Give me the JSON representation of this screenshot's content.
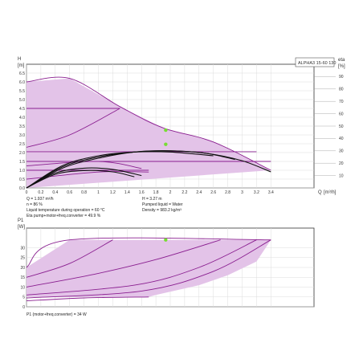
{
  "chart_data": [
    {
      "type": "line",
      "title": "ALPHA3 15-60 130",
      "ylabel": "H",
      "ylabel_unit": "[m]",
      "y2label": "eta",
      "y2label_unit": "[%]",
      "xlabel": "Q",
      "xlabel_unit": "[m³/h]",
      "xlim": [
        0,
        4.0
      ],
      "ylim": [
        0,
        7.0
      ],
      "y2lim": [
        0,
        100
      ],
      "grid": true,
      "x_ticks": [
        0,
        0.2,
        0.4,
        0.6,
        0.8,
        1.0,
        1.2,
        1.4,
        1.6,
        1.8,
        2.0,
        2.2,
        2.4,
        2.6,
        2.8,
        3.0,
        3.2,
        3.4
      ],
      "x_tick_labels": [
        "0",
        "0.2",
        "0.4",
        "0.6",
        "0.8",
        "1",
        "1.2",
        "1.4",
        "1.6",
        "1.8",
        "2",
        "2.2",
        "2.4",
        "2.6",
        "2.8",
        "3",
        "3.2",
        "3.4"
      ],
      "y_ticks": [
        0,
        0.5,
        1.0,
        1.5,
        2.0,
        2.5,
        3.0,
        3.5,
        4.0,
        4.5,
        5.0,
        5.5,
        6.0,
        6.5
      ],
      "y_tick_labels": [
        "0.0",
        "0.5",
        "1.0",
        "1.5",
        "2.0",
        "2.5",
        "3.0",
        "3.5",
        "4.0",
        "4.5",
        "5.0",
        "5.5",
        "6.0",
        "6.5"
      ],
      "y2_ticks": [
        10,
        20,
        30,
        40,
        50,
        60,
        70,
        80,
        90
      ],
      "y2_tick_labels": [
        "10",
        "20",
        "30",
        "40",
        "50",
        "60",
        "70",
        "80",
        "90"
      ],
      "operating_area": [
        [
          0,
          6.0
        ],
        [
          0.6,
          6.2
        ],
        [
          1.3,
          4.6
        ],
        [
          1.9,
          3.4
        ],
        [
          2.6,
          2.6
        ],
        [
          3.4,
          1.0
        ],
        [
          0,
          0
        ]
      ],
      "series": [
        {
          "kind": "head",
          "x": [
            0,
            0.6,
            1.3,
            1.9,
            2.6,
            3.4
          ],
          "y": [
            6.0,
            6.2,
            4.6,
            3.4,
            2.6,
            1.0
          ]
        },
        {
          "kind": "head",
          "x": [
            0,
            1.3
          ],
          "y": [
            4.5,
            4.5
          ]
        },
        {
          "kind": "head",
          "x": [
            0,
            0.6,
            1.3
          ],
          "y": [
            2.3,
            3.0,
            4.5
          ]
        },
        {
          "kind": "head",
          "x": [
            0,
            3.2
          ],
          "y": [
            2.05,
            2.05
          ]
        },
        {
          "kind": "head",
          "x": [
            0,
            3.4
          ],
          "y": [
            1.5,
            1.5
          ]
        },
        {
          "kind": "head",
          "x": [
            0,
            1.0,
            1.6
          ],
          "y": [
            1.25,
            1.5,
            1.1
          ]
        },
        {
          "kind": "head",
          "x": [
            0,
            1.7
          ],
          "y": [
            1.0,
            1.0
          ]
        },
        {
          "kind": "head",
          "x": [
            0,
            1.0,
            1.7
          ],
          "y": [
            0.5,
            0.9,
            0.9
          ]
        },
        {
          "kind": "efficiency",
          "x": [
            0,
            0.5,
            1.0,
            1.5,
            2.0,
            2.5,
            3.0,
            3.4
          ],
          "y": [
            0,
            16,
            24,
            29,
            30,
            28,
            22,
            13
          ]
        },
        {
          "kind": "efficiency",
          "x": [
            0,
            0.5,
            1.0,
            1.5,
            2.0,
            2.5,
            2.9
          ],
          "y": [
            0,
            17,
            25,
            29,
            30,
            28,
            23
          ]
        },
        {
          "kind": "efficiency",
          "x": [
            0,
            0.5,
            1.0,
            1.5,
            2.0,
            2.6
          ],
          "y": [
            0,
            18,
            26,
            29,
            29,
            26
          ]
        },
        {
          "kind": "efficiency",
          "x": [
            0,
            0.4,
            0.8,
            1.2,
            1.6
          ],
          "y": [
            0,
            12,
            16,
            15,
            10
          ]
        },
        {
          "kind": "efficiency",
          "x": [
            0,
            0.4,
            0.8,
            1.2,
            1.5
          ],
          "y": [
            0,
            11,
            14,
            13,
            9
          ]
        }
      ],
      "duty_points": [
        {
          "x": 1.937,
          "y": 3.27
        },
        {
          "x": 1.937,
          "y": 2.47
        }
      ],
      "annotations": [
        {
          "lines": [
            "Q = 1.937 m³/h",
            "n = 86 %",
            "Liquid temperature during operation = 60 °C",
            "Eta pump+motor+freq.converter = 49.9 %"
          ]
        },
        {
          "lines": [
            "H = 3.27 m",
            "Pumped liquid = Water",
            "Density = 983.2 kg/m³"
          ]
        }
      ]
    },
    {
      "type": "line",
      "ylabel": "P1",
      "ylabel_unit": "[W]",
      "xlim": [
        0,
        4.0
      ],
      "ylim": [
        0,
        40
      ],
      "grid": true,
      "y_ticks": [
        0,
        5,
        10,
        15,
        20,
        25,
        30
      ],
      "y_tick_labels": [
        "0",
        "5",
        "10",
        "15",
        "20",
        "25",
        "30"
      ],
      "operating_area": [
        [
          0,
          20
        ],
        [
          0.6,
          34
        ],
        [
          3.4,
          34
        ],
        [
          3.2,
          23
        ],
        [
          2.8,
          16
        ],
        [
          2.4,
          11
        ],
        [
          1.8,
          6
        ],
        [
          1.7,
          5
        ],
        [
          0,
          5
        ]
      ],
      "series": [
        {
          "kind": "power",
          "x": [
            0,
            0.6,
            3.4
          ],
          "y": [
            20,
            34,
            34
          ]
        },
        {
          "kind": "power",
          "x": [
            0,
            0.6,
            1.2
          ],
          "y": [
            15,
            22,
            34
          ]
        },
        {
          "kind": "power",
          "x": [
            0,
            1.0,
            1.8,
            2.7
          ],
          "y": [
            10,
            17,
            24,
            34
          ]
        },
        {
          "kind": "power",
          "x": [
            0,
            1.5,
            2.4,
            3.2
          ],
          "y": [
            6,
            11,
            20,
            34
          ]
        },
        {
          "kind": "power",
          "x": [
            0,
            1.6,
            2.6,
            3.4
          ],
          "y": [
            4.5,
            8,
            18,
            34
          ]
        },
        {
          "kind": "power",
          "x": [
            0,
            0.8,
            1.7
          ],
          "y": [
            3,
            4.5,
            5
          ]
        }
      ],
      "duty_points": [
        {
          "x": 1.937,
          "y": 34
        }
      ],
      "annotations": [
        {
          "lines": [
            "P1 (motor+freq.converter) = 34 W"
          ]
        }
      ]
    }
  ],
  "colors": {
    "fill": "#e3c3e8",
    "curve": "#8a1f90",
    "efficiency": "#111111",
    "grid": "#dcdcdc",
    "axis": "#333333",
    "duty_point": "#77dd33"
  }
}
